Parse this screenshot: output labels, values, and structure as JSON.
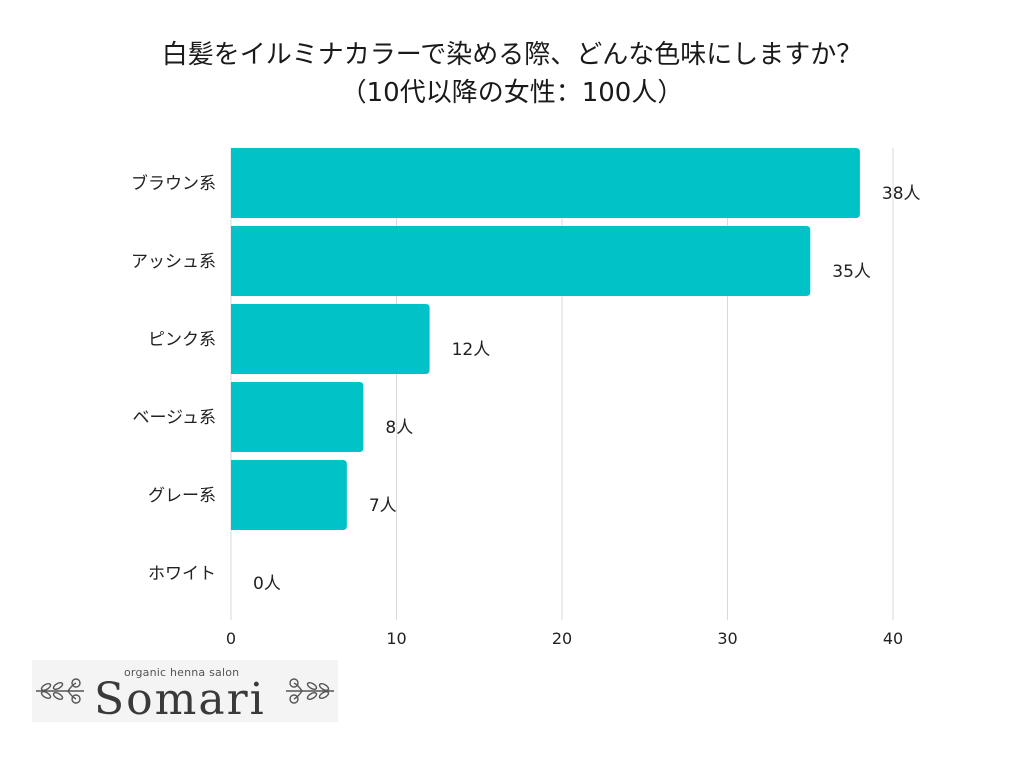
{
  "chart_data": {
    "type": "bar",
    "orientation": "horizontal",
    "title": "白髪をイルミナカラーで染める際、どんな色味にしますか？",
    "subtitle": "（10代以降の女性：100人）",
    "categories": [
      "ブラウン系",
      "アッシュ系",
      "ピンク系",
      "ベージュ系",
      "グレー系",
      "ホワイト"
    ],
    "values": [
      38,
      35,
      12,
      8,
      7,
      0
    ],
    "data_labels": [
      "38人",
      "35人",
      "12人",
      "8人",
      "7人",
      "0人"
    ],
    "x_ticks": [
      "0",
      "10",
      "20",
      "30",
      "40"
    ],
    "xlim": [
      0,
      40
    ],
    "grid": "vertical",
    "bar_color": "#00c2c7",
    "grid_color": "#d9d9d9"
  },
  "logo": {
    "tagline": "organic henna salon",
    "brand": "Somari"
  }
}
